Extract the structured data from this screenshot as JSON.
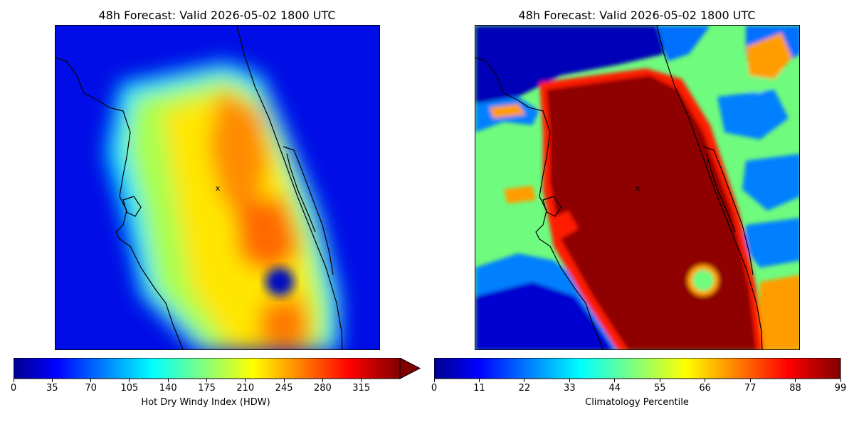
{
  "panels": [
    {
      "title": "48h Forecast: Valid 2026-05-02 1800 UTC",
      "colorbar": {
        "label": "Hot Dry Windy Index (HDW)",
        "ticks": [
          "0",
          "35",
          "70",
          "105",
          "140",
          "175",
          "210",
          "245",
          "280",
          "315"
        ],
        "range": [
          0,
          350
        ],
        "extend": "max",
        "colormap": "jet"
      }
    },
    {
      "title": "48h Forecast: Valid 2026-05-02 1800 UTC",
      "colorbar": {
        "label": "Climatology Percentile",
        "ticks": [
          "0",
          "11",
          "22",
          "33",
          "44",
          "55",
          "66",
          "77",
          "88",
          "99"
        ],
        "range": [
          0,
          99
        ],
        "extend": "neither",
        "colormap": "jet"
      }
    }
  ],
  "marker": "x",
  "colors": {
    "jet_dark_blue": "#00008f",
    "jet_blue": "#0000ff",
    "jet_cyan": "#00ffff",
    "jet_yellow": "#ffff00",
    "jet_red": "#ff0000",
    "jet_dark_red": "#800000",
    "green_mid": "#6ffb7d",
    "orange": "#ff9d00"
  }
}
